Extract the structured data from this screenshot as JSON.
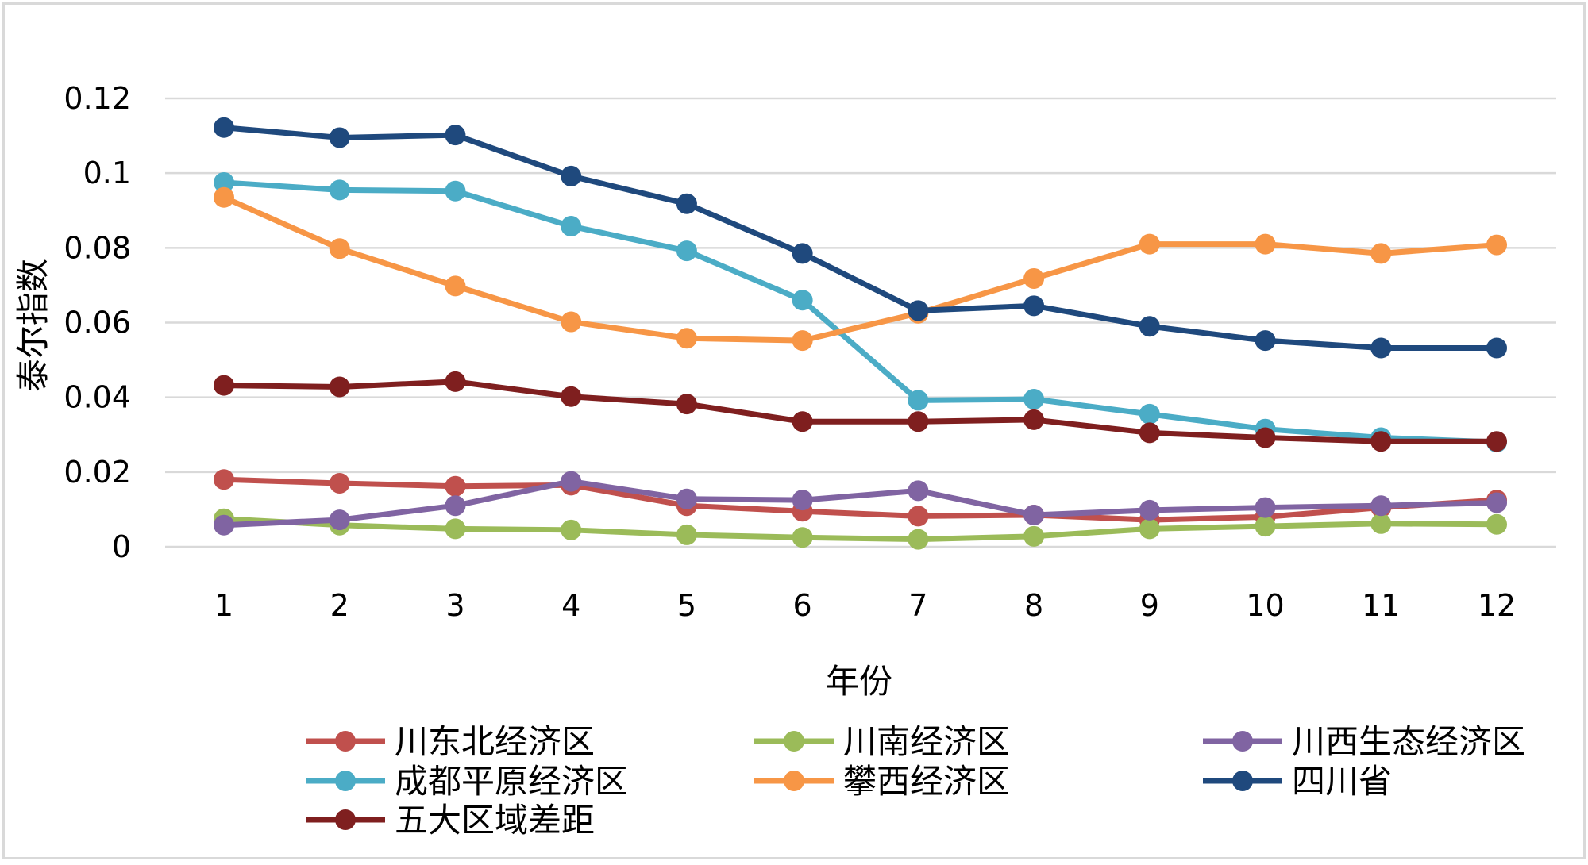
{
  "chart_data": {
    "type": "line",
    "title": "",
    "xlabel": "年份",
    "ylabel": "泰尔指数",
    "x": [
      1,
      2,
      3,
      4,
      5,
      6,
      7,
      8,
      9,
      10,
      11,
      12
    ],
    "ylim": [
      0,
      0.12
    ],
    "yticks": [
      "0",
      "0.02",
      "0.04",
      "0.06",
      "0.08",
      "0.1",
      "0.12"
    ],
    "grid": true,
    "legend_position": "bottom",
    "series": [
      {
        "name": "川东北经济区",
        "color": "#c0504d",
        "values": [
          0.018,
          0.017,
          0.0162,
          0.0165,
          0.011,
          0.0095,
          0.0082,
          0.0085,
          0.0072,
          0.008,
          0.0105,
          0.0125
        ]
      },
      {
        "name": "川南经济区",
        "color": "#9bbb59",
        "values": [
          0.0075,
          0.0058,
          0.0048,
          0.0045,
          0.0032,
          0.0025,
          0.002,
          0.0028,
          0.0048,
          0.0055,
          0.0062,
          0.006
        ]
      },
      {
        "name": "川西生态经济区",
        "color": "#8064a2",
        "values": [
          0.0058,
          0.0072,
          0.011,
          0.0175,
          0.0128,
          0.0125,
          0.015,
          0.0085,
          0.0098,
          0.0105,
          0.011,
          0.0118
        ]
      },
      {
        "name": "成都平原经济区",
        "color": "#4bacc6",
        "values": [
          0.0975,
          0.0955,
          0.0952,
          0.0858,
          0.0792,
          0.066,
          0.0392,
          0.0395,
          0.0355,
          0.0315,
          0.0292,
          0.028
        ]
      },
      {
        "name": "攀西经济区",
        "color": "#f79646",
        "values": [
          0.0935,
          0.0798,
          0.0698,
          0.0602,
          0.0558,
          0.0552,
          0.0625,
          0.0718,
          0.081,
          0.081,
          0.0785,
          0.0808
        ]
      },
      {
        "name": "四川省",
        "color": "#1f497d",
        "values": [
          0.1122,
          0.1095,
          0.1102,
          0.0992,
          0.0918,
          0.0785,
          0.0632,
          0.0645,
          0.059,
          0.0552,
          0.0532,
          0.0532
        ]
      },
      {
        "name": "五大区域差距",
        "color": "#7f1f1f",
        "values": [
          0.0432,
          0.0428,
          0.0442,
          0.0402,
          0.0382,
          0.0335,
          0.0335,
          0.034,
          0.0305,
          0.0292,
          0.0282,
          0.0282
        ]
      }
    ]
  }
}
